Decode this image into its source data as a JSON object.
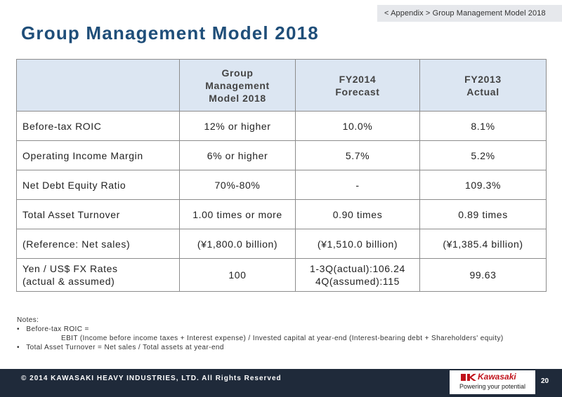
{
  "breadcrumb": "< Appendix >  Group Management Model 2018",
  "title": "Group Management Model 2018",
  "table": {
    "headers": [
      "",
      "Group\nManagement\nModel 2018",
      "FY2014\nForecast",
      "FY2013\nActual"
    ],
    "rows": [
      [
        "Before-tax ROIC",
        "12% or higher",
        "10.0%",
        "8.1%"
      ],
      [
        "Operating Income Margin",
        "6% or higher",
        "5.7%",
        "5.2%"
      ],
      [
        "Net Debt Equity Ratio",
        "70%-80%",
        "-",
        "109.3%"
      ],
      [
        "Total Asset Turnover",
        "1.00 times or more",
        "0.90 times",
        "0.89 times"
      ],
      [
        "(Reference: Net sales)",
        "(¥1,800.0 billion)",
        "(¥1,510.0 billion)",
        "(¥1,385.4 billion)"
      ],
      [
        "Yen / US$ FX Rates\n(actual & assumed)",
        "100",
        "1-3Q(actual):106.24\n4Q(assumed):115",
        "99.63"
      ]
    ]
  },
  "notes": {
    "heading": "Notes:",
    "line1": "•   Before-tax ROIC =",
    "line2": "EBIT (Income before income taxes + Interest expense) / Invested capital at year-end (Interest-bearing debt + Shareholders' equity)",
    "line3": "•   Total Asset Turnover = Net sales / Total assets at year-end"
  },
  "footer": {
    "copyright": "© 2014 KAWASAKI HEAVY INDUSTRIES, LTD. All Rights Reserved",
    "logo_name": "Kawasaki",
    "logo_tagline": "Powering your potential",
    "page_number": "20",
    "brand_color": "#c0121b"
  }
}
